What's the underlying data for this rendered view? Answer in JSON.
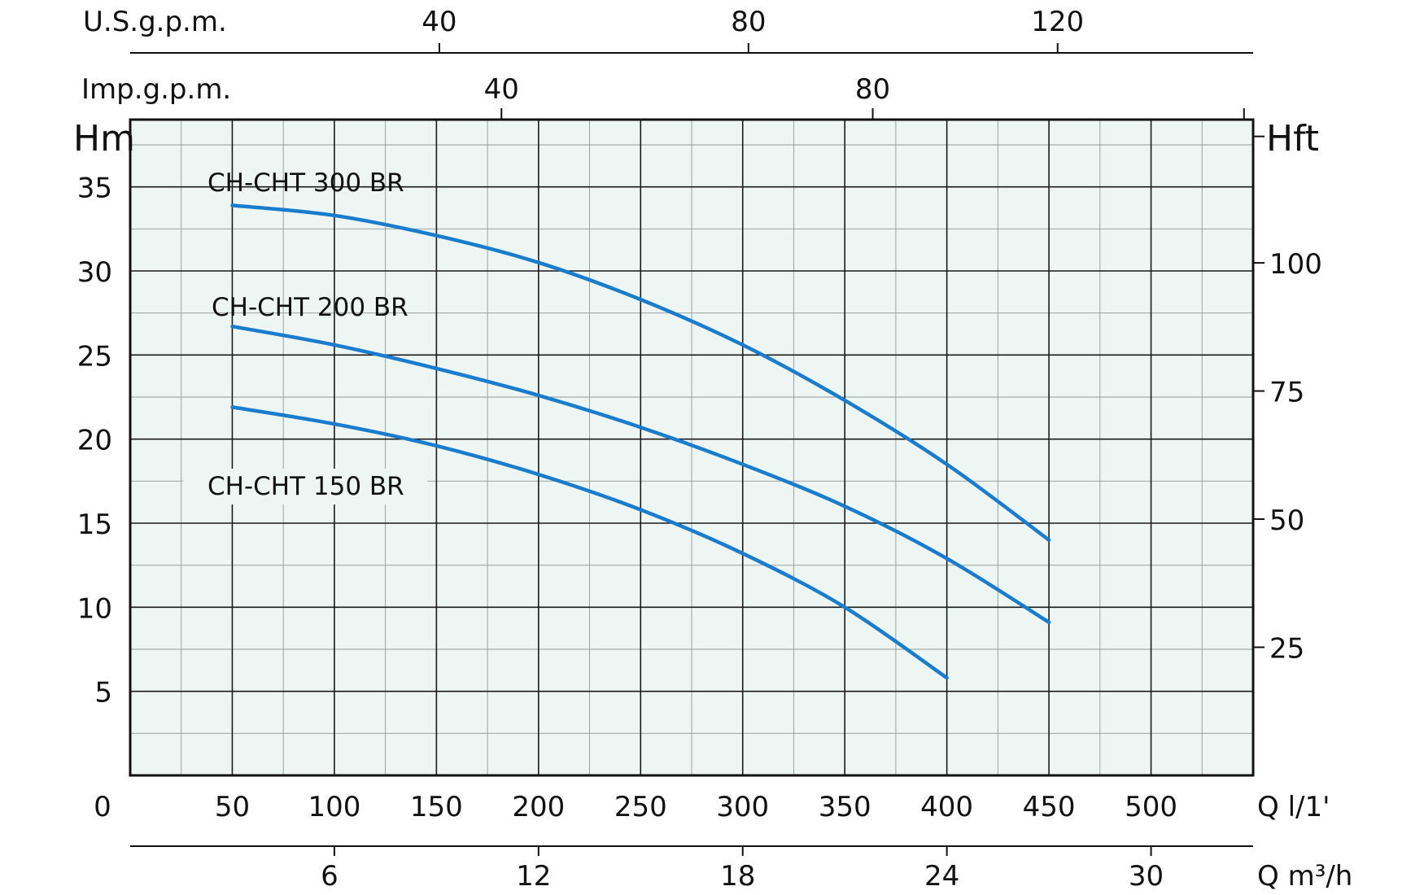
{
  "chart_data": {
    "type": "line",
    "colors": {
      "plot_background": "#eef6f4",
      "curve": "#1a7ccc",
      "grid": "#1a1a1a"
    },
    "grid": true,
    "xlabel": "Q l/1'",
    "ylabel": "Hm",
    "y2label": "Hft",
    "xlim": [
      0,
      550
    ],
    "ylim": [
      0,
      39
    ],
    "x_ticks": [
      50,
      100,
      150,
      200,
      250,
      300,
      350,
      400,
      450,
      500
    ],
    "x_origin_label": "0",
    "y_ticks": [
      5,
      10,
      15,
      20,
      25,
      30,
      35
    ],
    "y2_ticks": [
      25,
      50,
      75,
      100
    ],
    "top_axis_usgpm": {
      "label": "U.S.g.p.m.",
      "ticks": [
        40,
        80,
        120
      ]
    },
    "top_axis_impgpm": {
      "label": "Imp.g.p.m.",
      "ticks": [
        40,
        80
      ]
    },
    "bottom_axis_m3h": {
      "label": "Q m³/h",
      "ticks": [
        6,
        12,
        18,
        24,
        30
      ]
    },
    "series": [
      {
        "name": "CH-CHT 300 BR",
        "x": [
          50,
          100,
          150,
          200,
          250,
          300,
          350,
          400,
          450
        ],
        "y": [
          33.9,
          33.3,
          32.1,
          30.5,
          28.3,
          25.6,
          22.3,
          18.5,
          14.0
        ]
      },
      {
        "name": "CH-CHT 200 BR",
        "x": [
          50,
          100,
          150,
          200,
          250,
          300,
          350,
          400,
          450
        ],
        "y": [
          26.7,
          25.6,
          24.2,
          22.6,
          20.7,
          18.5,
          16.0,
          12.9,
          9.1
        ]
      },
      {
        "name": "CH-CHT 150 BR",
        "x": [
          50,
          100,
          150,
          200,
          250,
          300,
          350,
          400
        ],
        "y": [
          21.9,
          20.9,
          19.6,
          17.9,
          15.8,
          13.2,
          10.0,
          5.8
        ]
      }
    ]
  }
}
